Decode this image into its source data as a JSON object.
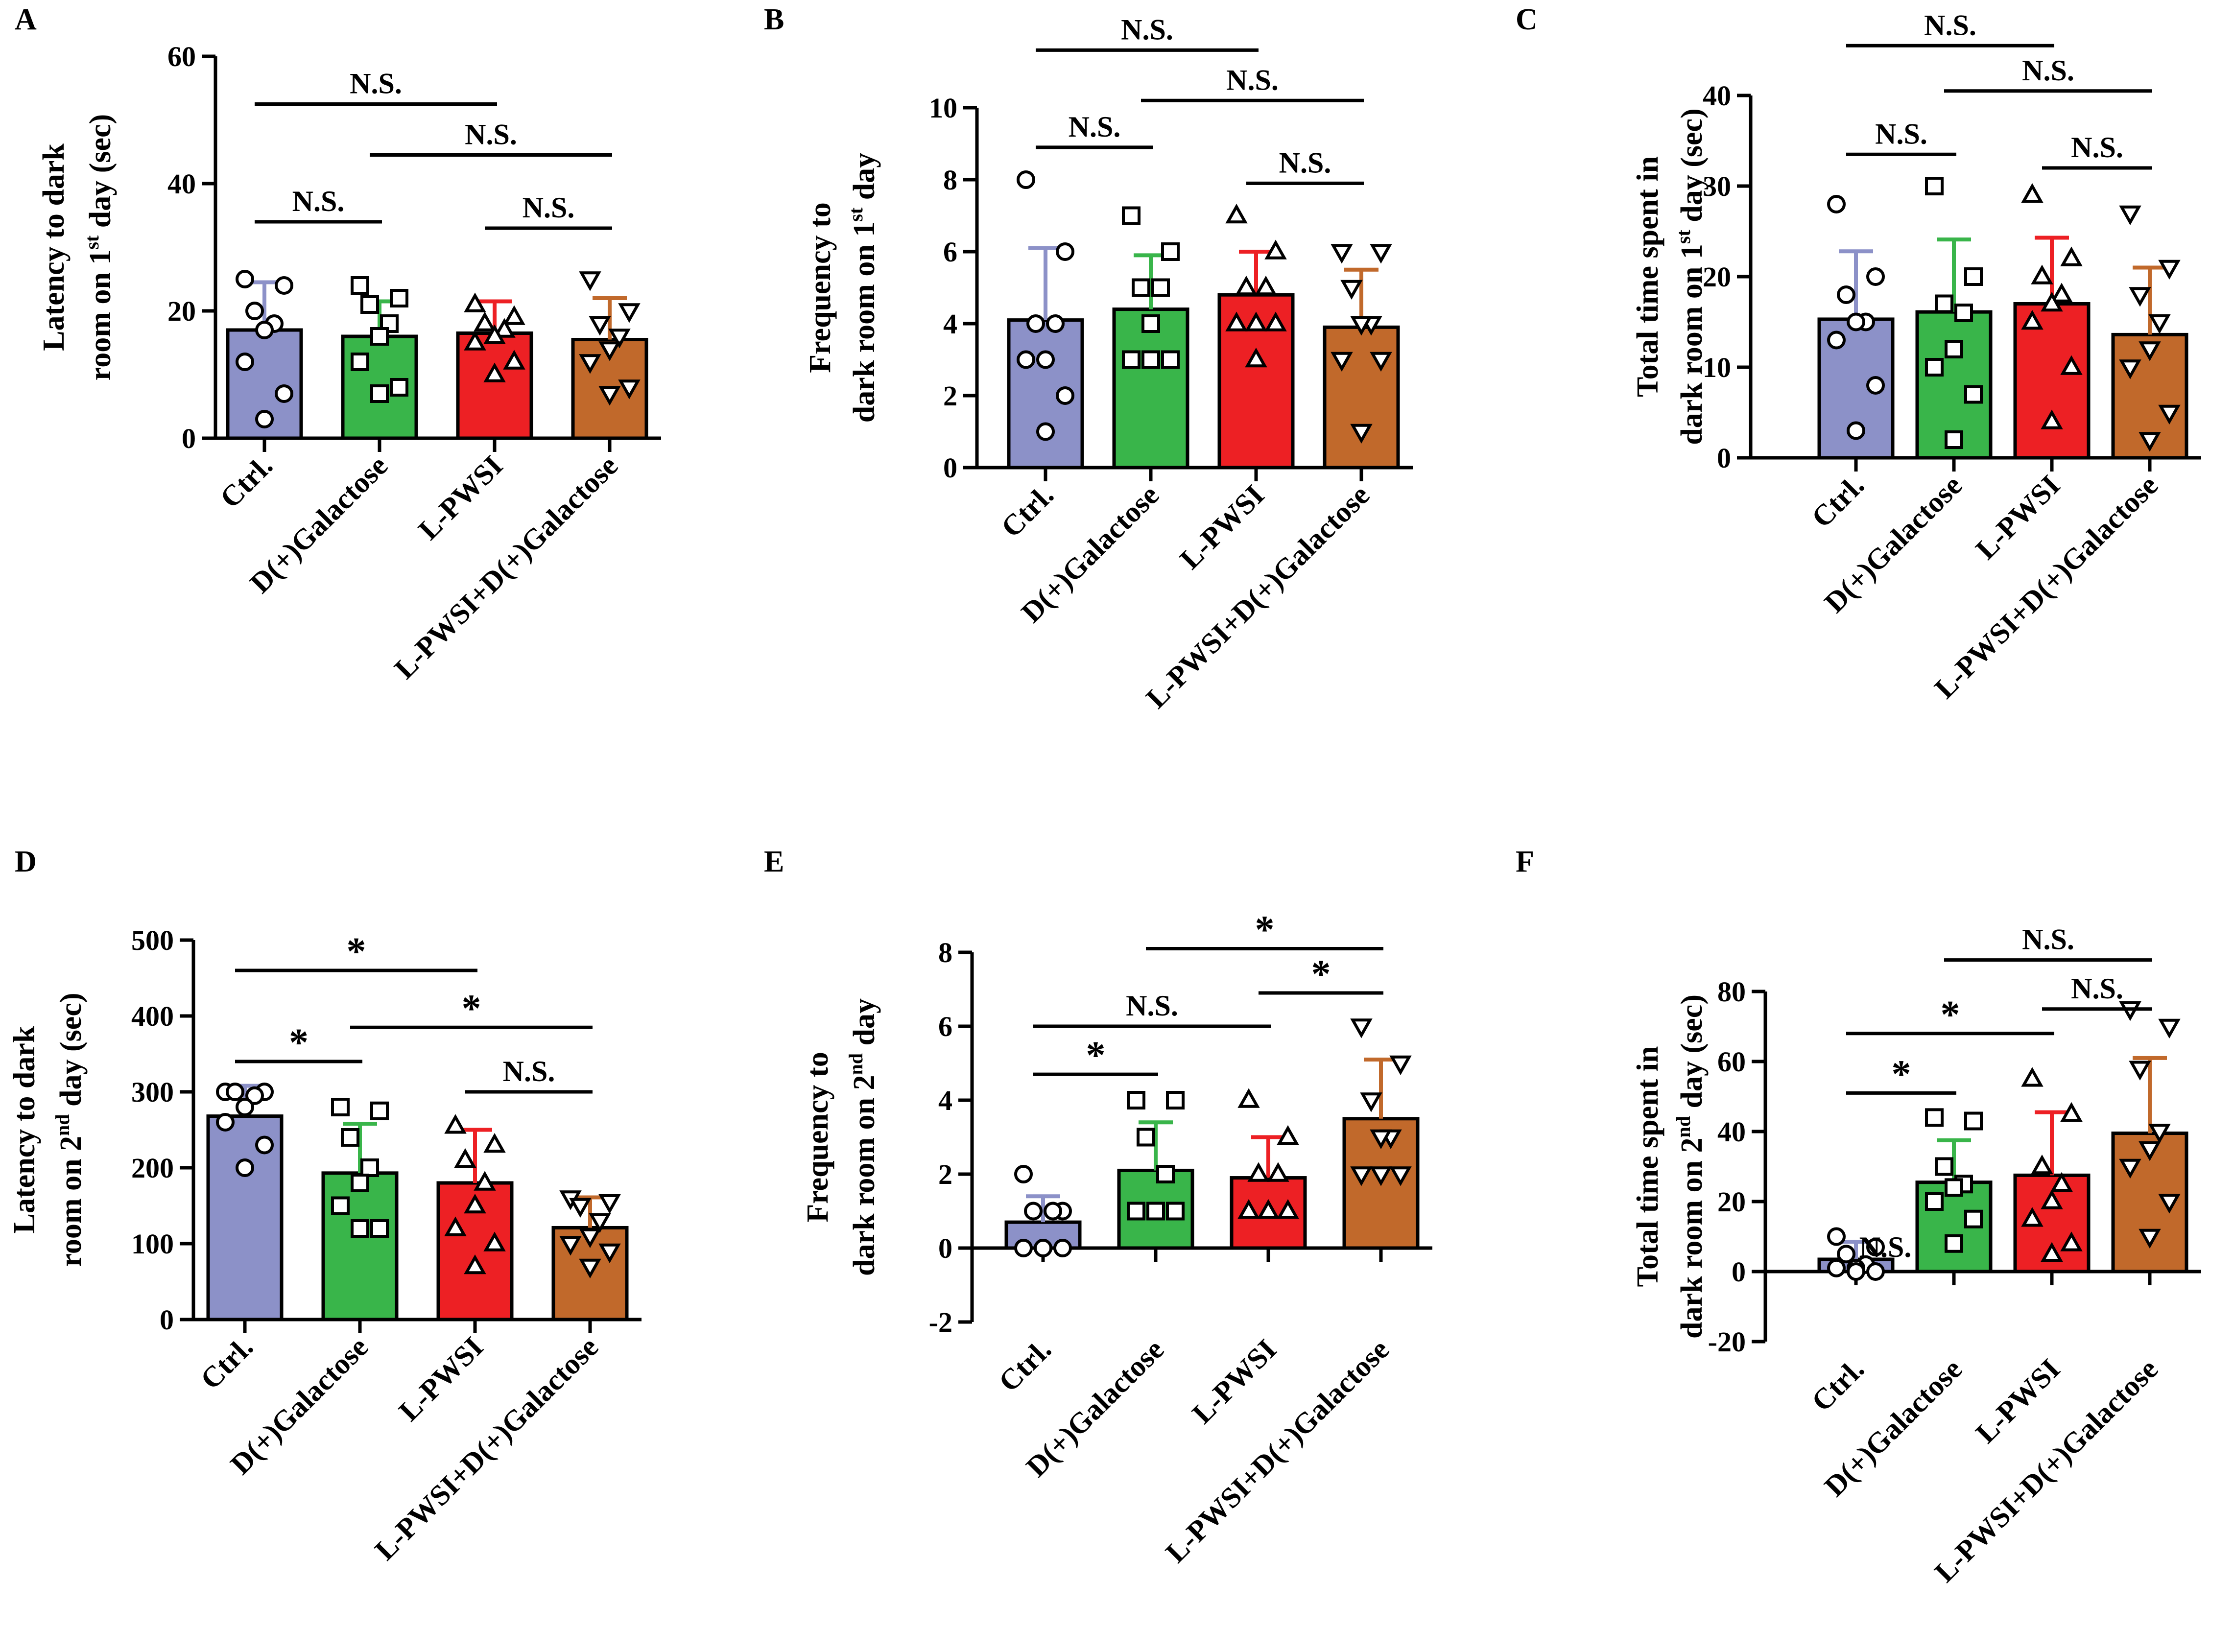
{
  "figure": {
    "groups": [
      "Ctrl.",
      "D(+)Galactose",
      "L-PWSI",
      "L-PWSI+D(+)Galactose"
    ],
    "bar_colors": [
      "#8C91C8",
      "#39B54A",
      "#ED2024",
      "#C1692B"
    ],
    "marker_shapes": [
      "circle",
      "square",
      "triangle-up",
      "triangle-down"
    ]
  },
  "chart_data": [
    {
      "panel": "A",
      "type": "bar",
      "ylabel_line1": "Latency to dark",
      "ylabel_line2": "room on 1",
      "ylabel_sup": "st",
      "ylabel_tail": " day (sec)",
      "ylim": [
        0,
        60
      ],
      "yticks": [
        0,
        20,
        40,
        60
      ],
      "values": [
        17,
        16,
        16.5,
        15.5
      ],
      "errors": [
        7.5,
        5.5,
        5,
        6.5
      ],
      "points": [
        [
          25,
          24,
          20,
          18,
          17,
          12,
          7,
          3
        ],
        [
          24,
          22,
          21,
          18,
          16,
          12,
          8,
          7
        ],
        [
          21,
          19,
          18,
          17,
          16,
          15,
          12,
          10
        ],
        [
          25,
          20,
          18,
          16,
          14,
          12,
          8,
          7
        ]
      ],
      "comparisons": [
        {
          "from": 0,
          "to": 2,
          "y": 52.5,
          "label": "N.S."
        },
        {
          "from": 1,
          "to": 3,
          "y": 44.5,
          "label": "N.S."
        },
        {
          "from": 0,
          "to": 1,
          "y": 34,
          "label": "N.S."
        },
        {
          "from": 2,
          "to": 3,
          "y": 33,
          "label": "N.S."
        }
      ]
    },
    {
      "panel": "B",
      "type": "bar",
      "ylabel_line1": "Frequency to",
      "ylabel_line2": "dark room on 1",
      "ylabel_sup": "st",
      "ylabel_tail": " day",
      "ylim": [
        0,
        10
      ],
      "yticks": [
        0,
        2,
        4,
        6,
        8,
        10
      ],
      "values": [
        4.1,
        4.4,
        4.8,
        3.9
      ],
      "errors": [
        2,
        1.5,
        1.2,
        1.6
      ],
      "points": [
        [
          8,
          6,
          4,
          4,
          3,
          3,
          2,
          1
        ],
        [
          7,
          6,
          5,
          5,
          4,
          3,
          3,
          3
        ],
        [
          7,
          6,
          5,
          5,
          4,
          4,
          4,
          3
        ],
        [
          6,
          6,
          5,
          4,
          4,
          3,
          3,
          1
        ]
      ],
      "comparisons": [
        {
          "from": 0,
          "to": 2,
          "y": 11.6,
          "label": "N.S."
        },
        {
          "from": 1,
          "to": 3,
          "y": 10.2,
          "label": "N.S."
        },
        {
          "from": 0,
          "to": 1,
          "y": 8.9,
          "label": "N.S."
        },
        {
          "from": 2,
          "to": 3,
          "y": 7.9,
          "label": "N.S."
        }
      ]
    },
    {
      "panel": "C",
      "type": "bar",
      "ylabel_line1": "Total time spent in",
      "ylabel_line2": "dark room on 1",
      "ylabel_sup": "st",
      "ylabel_tail": " day (sec)",
      "ylim": [
        0,
        40
      ],
      "yticks": [
        0,
        10,
        20,
        30,
        40
      ],
      "values": [
        15.3,
        16.1,
        17,
        13.6
      ],
      "errors": [
        7.5,
        8,
        7.3,
        7.4
      ],
      "points": [
        [
          28,
          20,
          18,
          15,
          15,
          13,
          8,
          3
        ],
        [
          30,
          20,
          17,
          16,
          12,
          10,
          7,
          2
        ],
        [
          29,
          22,
          20,
          18,
          17,
          15,
          10,
          4
        ],
        [
          27,
          21,
          18,
          15,
          12,
          10,
          5,
          2
        ]
      ],
      "comparisons": [
        {
          "from": 0,
          "to": 2,
          "y": 45.5,
          "label": "N.S."
        },
        {
          "from": 1,
          "to": 3,
          "y": 40.5,
          "label": "N.S."
        },
        {
          "from": 0,
          "to": 1,
          "y": 33.5,
          "label": "N.S."
        },
        {
          "from": 2,
          "to": 3,
          "y": 32,
          "label": "N.S."
        }
      ]
    },
    {
      "panel": "D",
      "type": "bar",
      "ylabel_line1": "Latency to dark",
      "ylabel_line2": "room on 2",
      "ylabel_sup": "nd",
      "ylabel_tail": " day (sec)",
      "ylim": [
        0,
        500
      ],
      "yticks": [
        0,
        100,
        200,
        300,
        400,
        500
      ],
      "values": [
        268,
        193,
        180,
        121
      ],
      "errors": [
        40,
        65,
        70,
        40
      ],
      "points": [
        [
          300,
          300,
          300,
          295,
          280,
          260,
          230,
          200
        ],
        [
          280,
          275,
          240,
          200,
          180,
          150,
          120,
          120
        ],
        [
          255,
          230,
          210,
          180,
          150,
          120,
          100,
          70
        ],
        [
          160,
          155,
          150,
          130,
          110,
          100,
          90,
          70
        ]
      ],
      "comparisons": [
        {
          "from": 0,
          "to": 2,
          "y": 460,
          "label": "*"
        },
        {
          "from": 1,
          "to": 3,
          "y": 385,
          "label": "*"
        },
        {
          "from": 0,
          "to": 1,
          "y": 340,
          "label": "*"
        },
        {
          "from": 2,
          "to": 3,
          "y": 300,
          "label": "N.S."
        }
      ]
    },
    {
      "panel": "E",
      "type": "bar",
      "ylabel_line1": "Frequency to",
      "ylabel_line2": "dark room  on 2",
      "ylabel_sup": "nd",
      "ylabel_tail": " day",
      "ylim": [
        -2,
        8
      ],
      "yticks": [
        -2,
        0,
        2,
        4,
        6,
        8
      ],
      "values": [
        0.7,
        2.1,
        1.9,
        3.5
      ],
      "errors": [
        0.7,
        1.3,
        1.1,
        1.6
      ],
      "points": [
        [
          2,
          1,
          1,
          1,
          0,
          0,
          0,
          0
        ],
        [
          4,
          4,
          3,
          2,
          1,
          1,
          1,
          1
        ],
        [
          4,
          3,
          2,
          2,
          1,
          1,
          1,
          1
        ],
        [
          6,
          5,
          4,
          3,
          3,
          2,
          2,
          2
        ]
      ],
      "comparisons": [
        {
          "from": 1,
          "to": 3,
          "y": 8.1,
          "label": "*"
        },
        {
          "from": 2,
          "to": 3,
          "y": 6.9,
          "label": "*"
        },
        {
          "from": 0,
          "to": 2,
          "y": 6,
          "label": "N.S."
        },
        {
          "from": 0,
          "to": 1,
          "y": 4.7,
          "label": "*"
        }
      ]
    },
    {
      "panel": "F",
      "type": "bar",
      "ylabel_line1": "Total time spent in",
      "ylabel_line2": "dark room on 2",
      "ylabel_sup": "nd",
      "ylabel_tail": " day (sec)",
      "ylim": [
        -20,
        80
      ],
      "yticks": [
        -20,
        0,
        20,
        40,
        60,
        80
      ],
      "values": [
        3.5,
        25.5,
        27.5,
        39.5
      ],
      "errors": [
        5,
        12,
        18,
        21.5
      ],
      "points": [
        [
          10,
          7,
          5,
          2,
          1,
          1,
          0,
          0
        ],
        [
          44,
          43,
          30,
          25,
          24,
          20,
          15,
          8
        ],
        [
          55,
          45,
          30,
          25,
          20,
          15,
          8,
          5
        ],
        [
          75,
          70,
          58,
          40,
          35,
          30,
          20,
          10
        ]
      ],
      "comparisons": [
        {
          "from": 1,
          "to": 3,
          "y": 89,
          "label": "N.S."
        },
        {
          "from": 2,
          "to": 3,
          "y": 75,
          "label": "N.S."
        },
        {
          "from": 0,
          "to": 2,
          "y": 68,
          "label": "*"
        },
        {
          "from": 0,
          "to": 1,
          "y": 51,
          "label": "*"
        },
        {
          "from": 0,
          "to": 0,
          "y": 7,
          "label": "N.S.",
          "text_only": true
        }
      ]
    }
  ]
}
